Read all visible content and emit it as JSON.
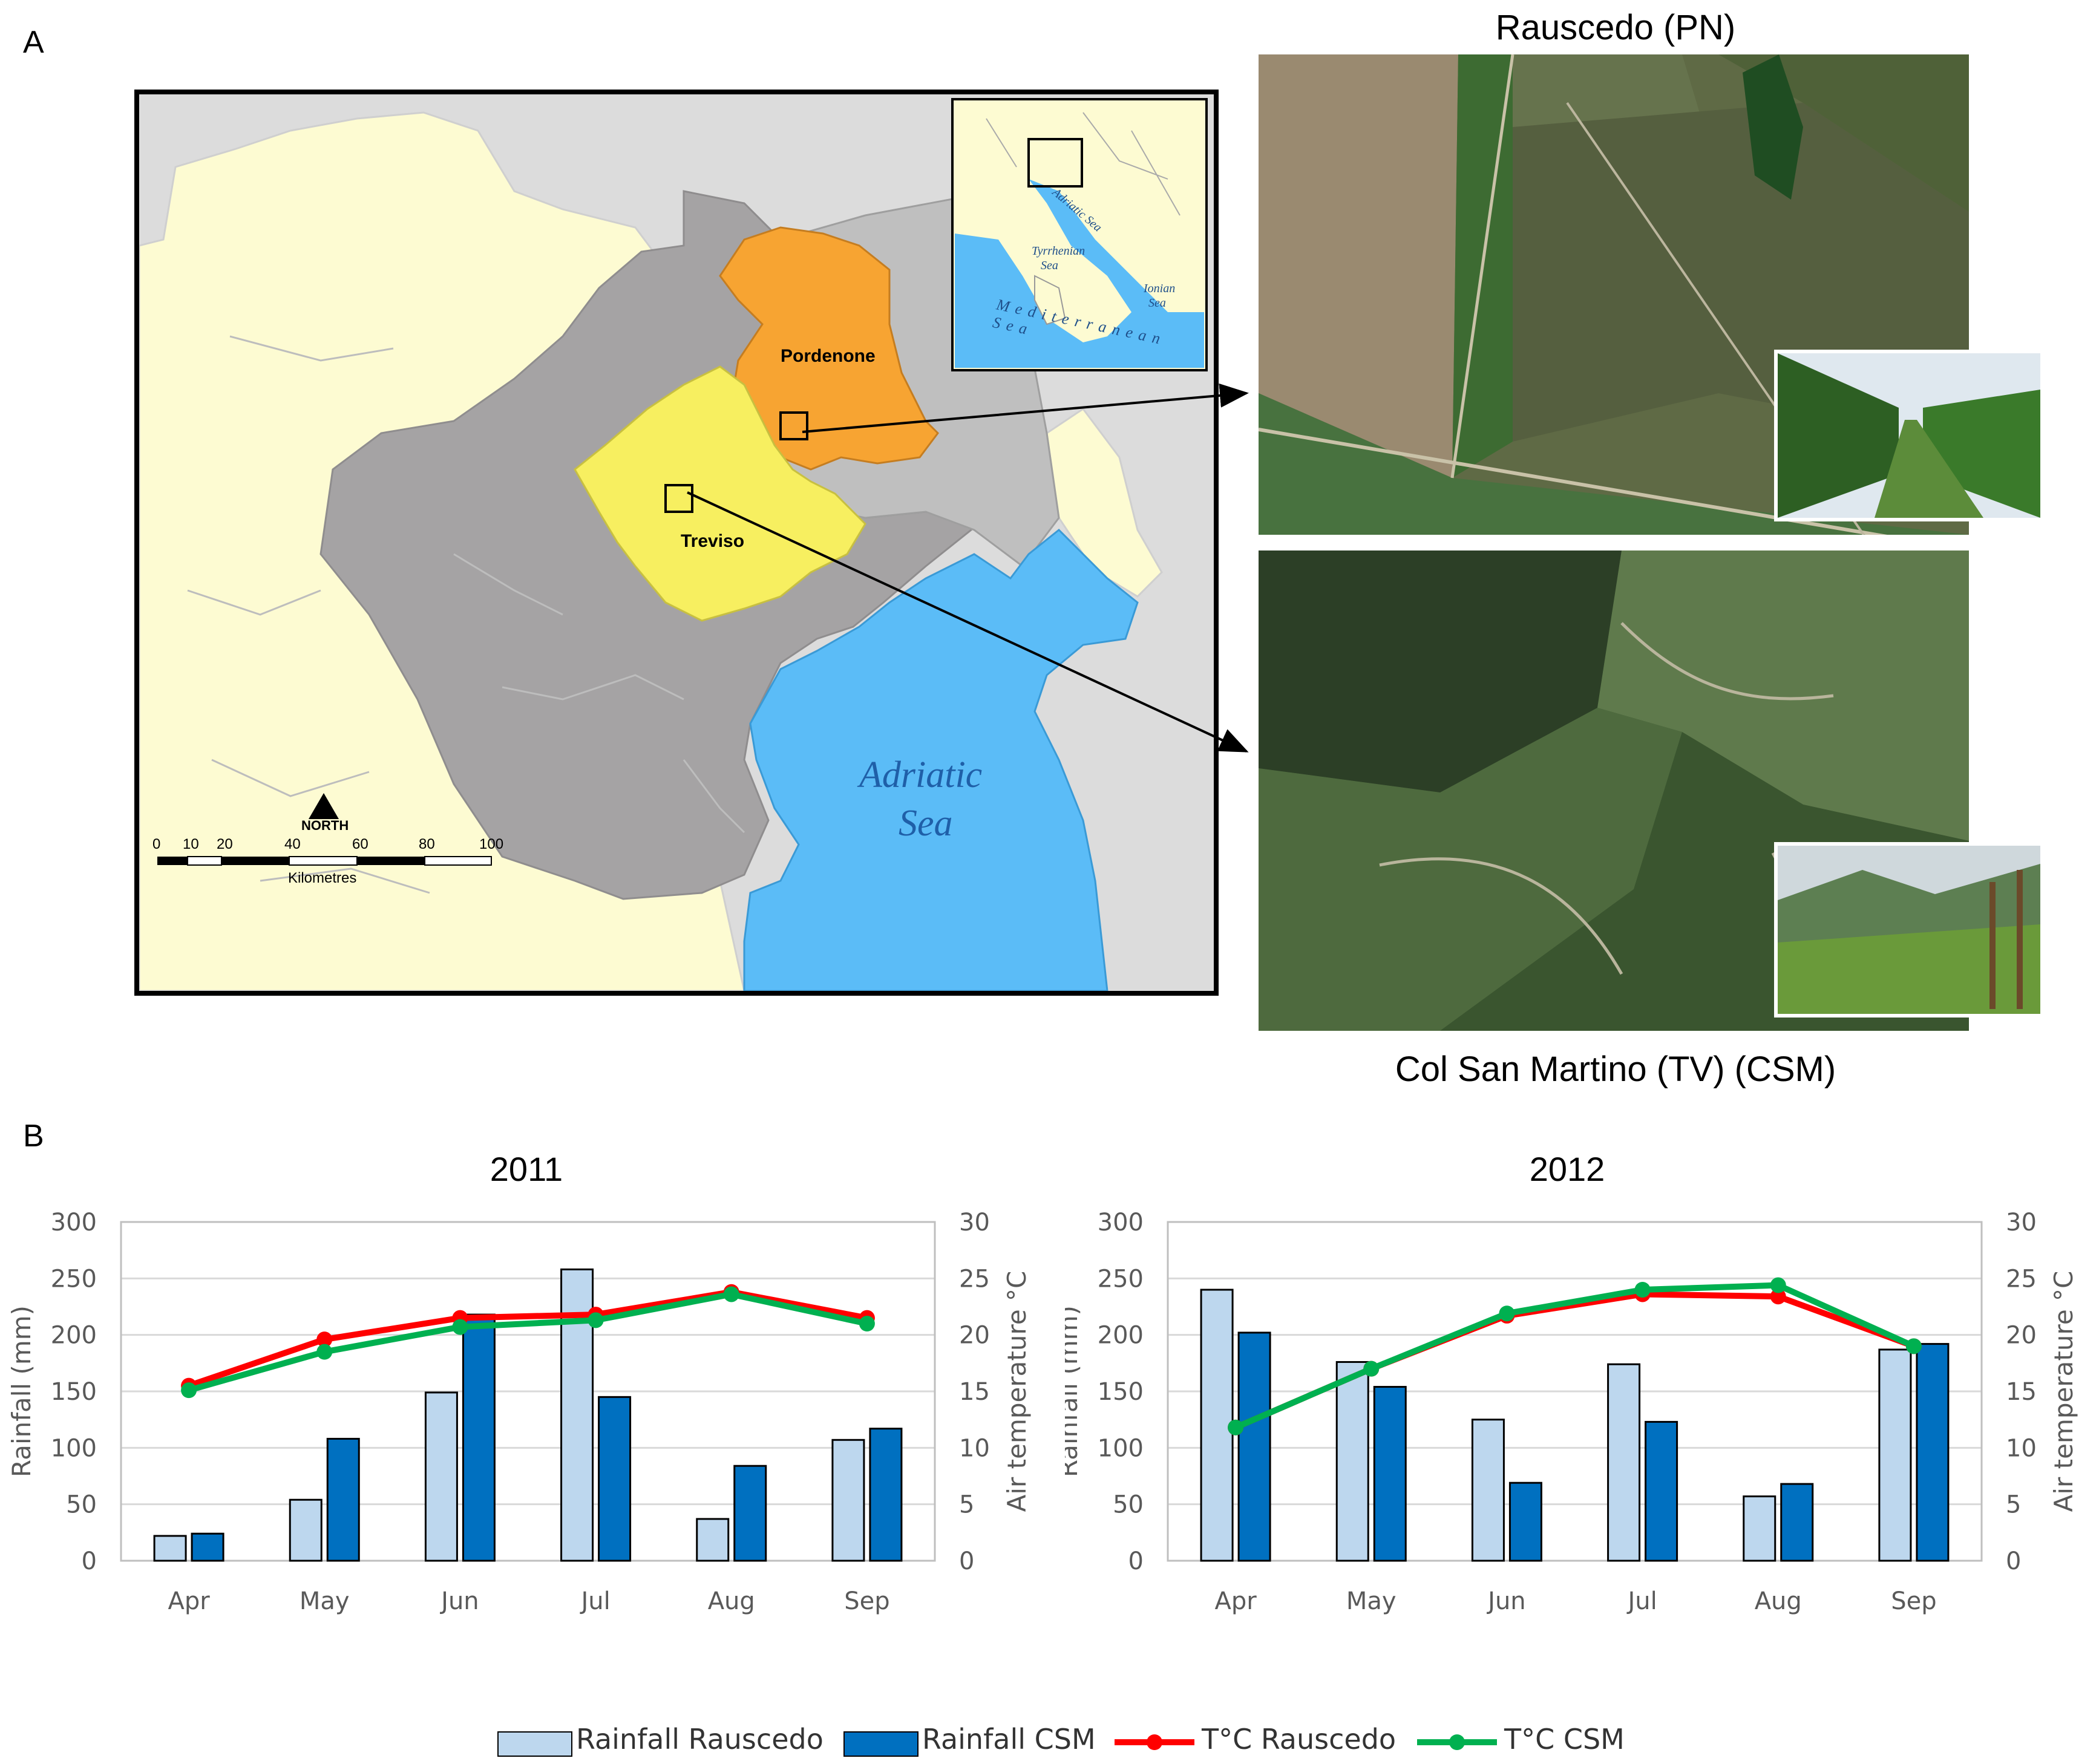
{
  "panels": {
    "a_label": "A",
    "b_label": "B"
  },
  "map": {
    "provinces": {
      "pordenone": "Pordenone",
      "treviso": "Treviso"
    },
    "sea_label_line1": "Adriatic",
    "sea_label_line2": "Sea",
    "inset_labels": {
      "adriatic": "Adriatic Sea",
      "tyrrhenian_1": "Tyrrhenian",
      "tyrrhenian_2": "Sea",
      "ionian_1": "Ionian",
      "ionian_2": "Sea",
      "mediterranean": "Mediterranean Sea"
    },
    "north": "NORTH",
    "scale_ticks": [
      "0",
      "10",
      "20",
      "40",
      "60",
      "80",
      "100"
    ],
    "scale_unit": "Kilometres"
  },
  "sites": {
    "top": "Rauscedo (PN)",
    "bottom": "Col San Martino (TV) (CSM)"
  },
  "colors": {
    "rain_rauscedo": "#bdd7ee",
    "rain_csm": "#0070c0",
    "t_rauscedo": "#ff0000",
    "t_csm": "#00b050",
    "sea": "#5bbcf7",
    "province_grey": "#a5a3a4",
    "land": "#fdfbd2",
    "pordenone": "#f7a432",
    "treviso": "#f7ef60"
  },
  "chart_data": [
    {
      "type": "bar",
      "title": "2011",
      "categories": [
        "Apr",
        "May",
        "Jun",
        "Jul",
        "Aug",
        "Sep"
      ],
      "ylabel": "Rainfall (mm)",
      "y2label": "Air temperature °C",
      "ylim": [
        0,
        300
      ],
      "y2lim": [
        0,
        30
      ],
      "yticks": [
        "0",
        "50",
        "100",
        "150",
        "200",
        "250",
        "300"
      ],
      "y2ticks": [
        "0",
        "5",
        "10",
        "15",
        "20",
        "25",
        "30"
      ],
      "series": [
        {
          "name": "Rainfall Rauscedo",
          "type": "bar",
          "axis": "left",
          "values": [
            22,
            54,
            149,
            258,
            37,
            107
          ]
        },
        {
          "name": "Rainfall CSM",
          "type": "bar",
          "axis": "left",
          "values": [
            24,
            108,
            218,
            145,
            84,
            117
          ]
        },
        {
          "name": "T°C Rauscedo",
          "type": "line",
          "axis": "right",
          "values": [
            15.5,
            19.6,
            21.5,
            21.8,
            23.8,
            21.5
          ]
        },
        {
          "name": "T°C CSM",
          "type": "line",
          "axis": "right",
          "values": [
            15.1,
            18.5,
            20.7,
            21.3,
            23.6,
            21.0
          ]
        }
      ]
    },
    {
      "type": "bar",
      "title": "2012",
      "categories": [
        "Apr",
        "May",
        "Jun",
        "Jul",
        "Aug",
        "Sep"
      ],
      "ylabel": "Rainfall (mm)",
      "y2label": "Air temperature °C",
      "ylim": [
        0,
        300
      ],
      "y2lim": [
        0,
        30
      ],
      "yticks": [
        "0",
        "50",
        "100",
        "150",
        "200",
        "250",
        "300"
      ],
      "y2ticks": [
        "0",
        "5",
        "10",
        "15",
        "20",
        "25",
        "30"
      ],
      "series": [
        {
          "name": "Rainfall Rauscedo",
          "type": "bar",
          "axis": "left",
          "values": [
            240,
            176,
            125,
            174,
            57,
            187
          ]
        },
        {
          "name": "Rainfall CSM",
          "type": "bar",
          "axis": "left",
          "values": [
            202,
            154,
            69,
            123,
            68,
            192
          ]
        },
        {
          "name": "T°C Rauscedo",
          "type": "line",
          "axis": "right",
          "values": [
            11.8,
            17.0,
            21.7,
            23.6,
            23.4,
            19.0
          ]
        },
        {
          "name": "T°C CSM",
          "type": "line",
          "axis": "right",
          "values": [
            11.8,
            17.0,
            21.9,
            24.0,
            24.4,
            19.0
          ]
        }
      ]
    }
  ],
  "legend": [
    "Rainfall Rauscedo",
    "Rainfall CSM",
    "T°C Rauscedo",
    "T°C CSM"
  ]
}
